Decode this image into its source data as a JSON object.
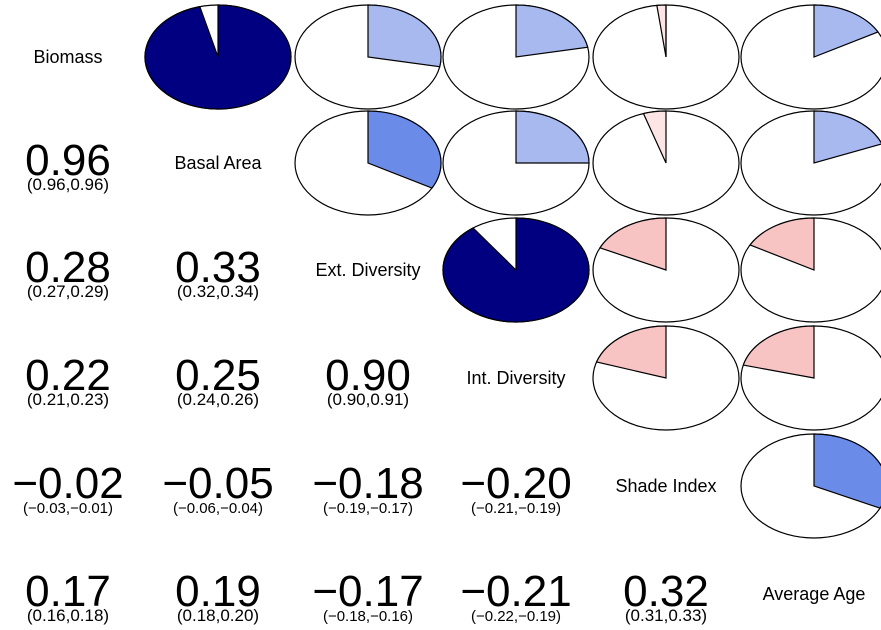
{
  "chart_data": {
    "type": "heatmap",
    "title": "",
    "variables": [
      "Biomass",
      "Basal Area",
      "Ext. Diversity",
      "Int. Diversity",
      "Shade Index",
      "Average Age"
    ],
    "upper_panel": "pie",
    "lower_panel": "coefficient with confidence interval",
    "correlations": [
      {
        "row": 1,
        "col": 0,
        "r": "0.96",
        "ci": "(0.96,0.96)"
      },
      {
        "row": 2,
        "col": 0,
        "r": "0.28",
        "ci": "(0.27,0.29)"
      },
      {
        "row": 2,
        "col": 1,
        "r": "0.33",
        "ci": "(0.32,0.34)"
      },
      {
        "row": 3,
        "col": 0,
        "r": "0.22",
        "ci": "(0.21,0.23)"
      },
      {
        "row": 3,
        "col": 1,
        "r": "0.25",
        "ci": "(0.24,0.26)"
      },
      {
        "row": 3,
        "col": 2,
        "r": "0.90",
        "ci": "(0.90,0.91)"
      },
      {
        "row": 4,
        "col": 0,
        "r": "−0.02",
        "ci": "(−0.03,−0.01)"
      },
      {
        "row": 4,
        "col": 1,
        "r": "−0.05",
        "ci": "(−0.06,−0.04)"
      },
      {
        "row": 4,
        "col": 2,
        "r": "−0.18",
        "ci": "(−0.19,−0.17)"
      },
      {
        "row": 4,
        "col": 3,
        "r": "−0.20",
        "ci": "(−0.21,−0.19)"
      },
      {
        "row": 5,
        "col": 0,
        "r": "0.17",
        "ci": "(0.16,0.18)"
      },
      {
        "row": 5,
        "col": 1,
        "r": "0.19",
        "ci": "(0.18,0.20)"
      },
      {
        "row": 5,
        "col": 2,
        "r": "−0.17",
        "ci": "(−0.18,−0.16)"
      },
      {
        "row": 5,
        "col": 3,
        "r": "−0.21",
        "ci": "(−0.22,−0.19)"
      },
      {
        "row": 5,
        "col": 4,
        "r": "0.32",
        "ci": "(0.31,0.33)"
      }
    ],
    "colors": {
      "outline": "#000000",
      "background": "#ffffff",
      "strong_positive": "#000080",
      "moderate_positive": "#6b8be8",
      "weak_positive": "#a8b9f0",
      "weak_negative": "#f7c3c3",
      "very_weak_negative": "#fde5e5"
    }
  }
}
